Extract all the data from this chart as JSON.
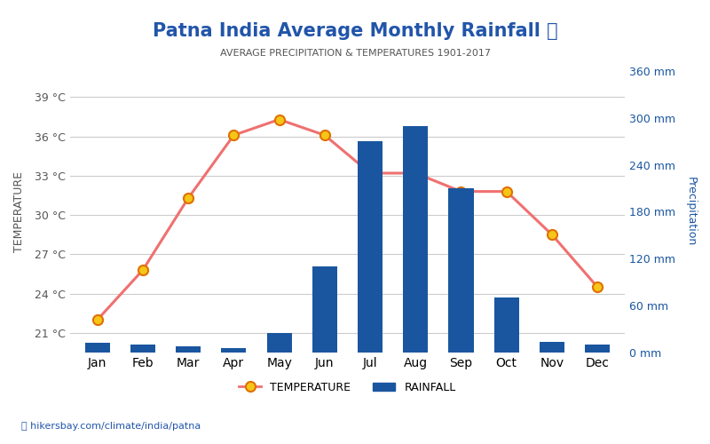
{
  "title": "Patna India Average Monthly Rainfall 🌧",
  "subtitle": "AVERAGE PRECIPITATION & TEMPERATURES 1901-2017",
  "months": [
    "Jan",
    "Feb",
    "Mar",
    "Apr",
    "May",
    "Jun",
    "Jul",
    "Aug",
    "Sep",
    "Oct",
    "Nov",
    "Dec"
  ],
  "rainfall_mm": [
    13,
    10,
    8,
    6,
    25,
    110,
    270,
    290,
    210,
    70,
    14,
    10
  ],
  "temperature_c": [
    22.0,
    25.8,
    31.3,
    36.1,
    37.3,
    36.1,
    33.2,
    33.2,
    31.8,
    31.8,
    28.5,
    24.5
  ],
  "bar_color": "#1a56a0",
  "line_color": "#f07070",
  "marker_face": "#f5c518",
  "marker_edge": "#e07000",
  "left_yticks": [
    21,
    24,
    27,
    30,
    33,
    36,
    39
  ],
  "right_yticks": [
    0,
    60,
    120,
    180,
    240,
    300,
    360
  ],
  "left_ylim": [
    19.5,
    41.0
  ],
  "right_ylim": [
    0,
    360
  ],
  "ylabel_left": "TEMPERATURE",
  "ylabel_right": "Precipitation",
  "left_tick_color": "#555555",
  "right_tick_color": "#1a56a0",
  "title_color": "#2255aa",
  "subtitle_color": "#555555",
  "watermark": "hikersbay.com/climate/india/patna",
  "background_color": "#ffffff",
  "grid_color": "#cccccc"
}
